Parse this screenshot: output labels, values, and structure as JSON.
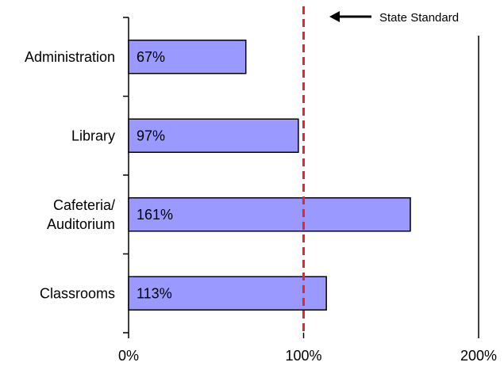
{
  "chart_data": {
    "type": "bar",
    "orientation": "horizontal",
    "categories": [
      "Administration",
      "Library",
      "Cafeteria/\nAuditorium",
      "Classrooms"
    ],
    "values": [
      67,
      97,
      161,
      113
    ],
    "value_labels": [
      "67%",
      "97%",
      "161%",
      "113%"
    ],
    "xlim": [
      0,
      200
    ],
    "x_ticks": [
      0,
      100,
      200
    ],
    "x_tick_labels": [
      "0%",
      "100%",
      "200%"
    ],
    "reference_line": {
      "value": 100,
      "label": "State Standard",
      "color": "#e8262a",
      "style": "dashed"
    },
    "bar_color": "#9999ff",
    "grid": false,
    "title": "",
    "xlabel": "",
    "ylabel": ""
  }
}
